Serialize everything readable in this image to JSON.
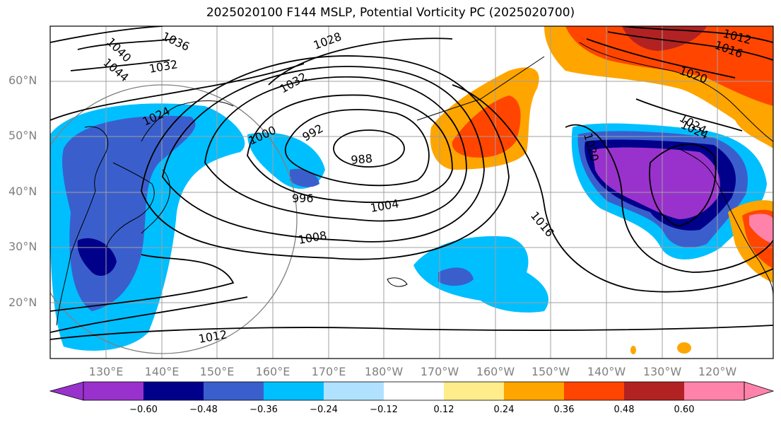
{
  "title": "2025020100 F144 MSLP, Potential Vorticity PC (2025020700)",
  "lat_labels": [
    "60°N",
    "50°N",
    "40°N",
    "30°N",
    "20°N"
  ],
  "lon_labels": [
    "130°E",
    "140°E",
    "150°E",
    "160°E",
    "170°E",
    "180°W",
    "170°W",
    "160°W",
    "150°W",
    "140°W",
    "130°W",
    "120°W"
  ],
  "contour_labels": [
    "1036",
    "1040",
    "1044",
    "1032",
    "1028",
    "1024",
    "1020",
    "1016",
    "1012",
    "1032",
    "1024",
    "1000",
    "992",
    "988",
    "996",
    "1004",
    "1008",
    "1012",
    "1016",
    "1020",
    "1024"
  ],
  "colorbar": {
    "ticks": [
      "−0.60",
      "−0.48",
      "−0.36",
      "−0.24",
      "−0.12",
      "0.12",
      "0.24",
      "0.36",
      "0.48",
      "0.60"
    ],
    "colors": [
      "#9932cc",
      "#00008b",
      "#3a5fcd",
      "#00bfff",
      "#b0e2ff",
      "#ffffff",
      "#ffec8b",
      "#ffa500",
      "#ff4500",
      "#b22222",
      "#ff82ab"
    ]
  }
}
